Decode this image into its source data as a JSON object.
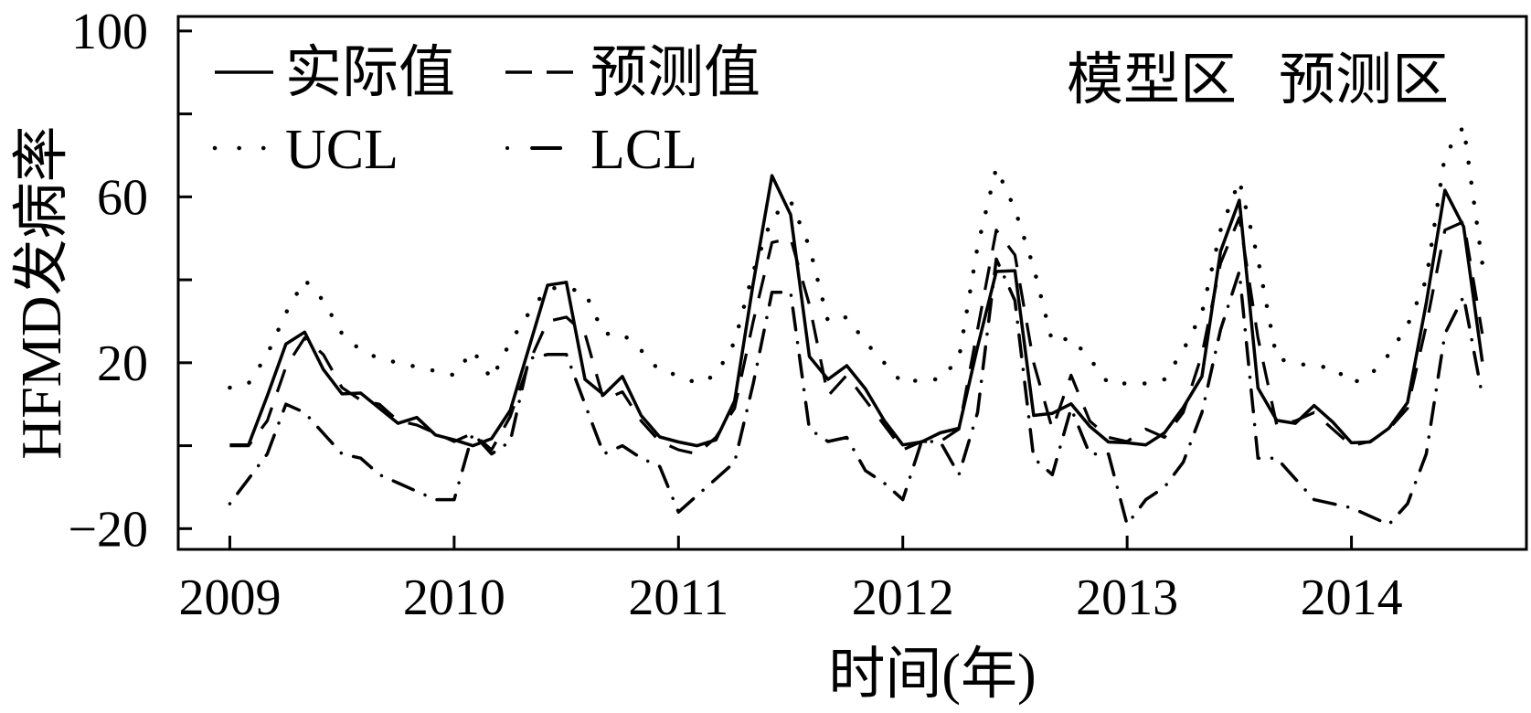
{
  "colors": {
    "line": "#000000",
    "background": "#ffffff"
  },
  "chart_data": {
    "type": "line",
    "xlabel": "时间(年)",
    "ylabel": "HFMD发病率",
    "xlim": [
      2008.77,
      2014.78
    ],
    "ylim": [
      -25,
      103.5
    ],
    "grid": false,
    "legend_placement": "top-left",
    "x_ticks": [
      {
        "value": 2009,
        "label": "2009"
      },
      {
        "value": 2010,
        "label": "2010"
      },
      {
        "value": 2011,
        "label": "2011"
      },
      {
        "value": 2012,
        "label": "2012"
      },
      {
        "value": 2013,
        "label": "2013"
      },
      {
        "value": 2014,
        "label": "2014"
      }
    ],
    "y_ticks": [
      {
        "value": -20,
        "label": "−20"
      },
      {
        "value": 0,
        "label": ""
      },
      {
        "value": 20,
        "label": "20"
      },
      {
        "value": 40,
        "label": ""
      },
      {
        "value": 60,
        "label": "60"
      },
      {
        "value": 80,
        "label": ""
      },
      {
        "value": 100,
        "label": "100"
      }
    ],
    "region_labels": [
      "模型区",
      "预测区"
    ],
    "x": [
      "2009-01",
      "2009-02",
      "2009-03",
      "2009-04",
      "2009-05",
      "2009-06",
      "2009-07",
      "2009-08",
      "2009-09",
      "2009-10",
      "2009-11",
      "2009-12",
      "2010-01",
      "2010-02",
      "2010-03",
      "2010-04",
      "2010-05",
      "2010-06",
      "2010-07",
      "2010-08",
      "2010-09",
      "2010-10",
      "2010-11",
      "2010-12",
      "2011-01",
      "2011-02",
      "2011-03",
      "2011-04",
      "2011-05",
      "2011-06",
      "2011-07",
      "2011-08",
      "2011-09",
      "2011-10",
      "2011-11",
      "2011-12",
      "2012-01",
      "2012-02",
      "2012-03",
      "2012-04",
      "2012-05",
      "2012-06",
      "2012-07",
      "2012-08",
      "2012-09",
      "2012-10",
      "2012-11",
      "2012-12",
      "2013-01",
      "2013-02",
      "2013-03",
      "2013-04",
      "2013-05",
      "2013-06",
      "2013-07",
      "2013-08",
      "2013-09",
      "2013-10",
      "2013-11",
      "2013-12",
      "2014-01",
      "2014-02",
      "2014-03",
      "2014-04",
      "2014-05",
      "2014-06",
      "2014-07",
      "2014-08"
    ],
    "series": [
      {
        "name": "实际值",
        "line_style": "solid",
        "values": [
          0.2,
          0.2,
          12.0,
          24.5,
          27.4,
          18.4,
          12.5,
          12.7,
          9.0,
          5.4,
          6.8,
          2.6,
          1.4,
          0.0,
          1.7,
          8.5,
          23.6,
          38.7,
          39.4,
          16.0,
          12.3,
          16.7,
          7.3,
          2.1,
          0.9,
          0.0,
          1.4,
          10.8,
          39.2,
          65.1,
          55.7,
          21.5,
          16.0,
          19.3,
          13.7,
          6.1,
          0.2,
          0.9,
          3.1,
          4.2,
          23.8,
          42.0,
          42.2,
          7.3,
          7.8,
          10.1,
          4.7,
          0.9,
          0.7,
          0.2,
          3.1,
          9.2,
          16.7,
          46.9,
          59.2,
          13.9,
          6.1,
          5.4,
          9.7,
          5.7,
          0.7,
          0.9,
          4.2,
          10.4,
          34.4,
          61.6,
          52.8,
          20.3
        ]
      },
      {
        "name": "预测值",
        "line_style": "dashed",
        "values": [
          0,
          0,
          6,
          19,
          26,
          22,
          14,
          11,
          10,
          6,
          5,
          3,
          1,
          3,
          -1,
          7,
          20,
          30,
          31,
          27,
          11,
          13,
          6,
          1,
          -1,
          -2,
          2,
          9,
          30,
          49,
          50,
          34,
          12,
          17,
          11,
          5,
          -1,
          1,
          1,
          4,
          28,
          52,
          46,
          20,
          4,
          17,
          6,
          2,
          1,
          4,
          2,
          8,
          22,
          44,
          55,
          26,
          5,
          6,
          8,
          4,
          0,
          1,
          4,
          9,
          29,
          52,
          54,
          27
        ]
      },
      {
        "name": "UCL",
        "line_style": "dotted",
        "values": [
          14,
          15,
          22,
          32,
          40,
          35,
          27,
          23,
          21,
          20,
          19,
          18,
          17,
          23,
          16,
          25,
          32,
          38,
          38,
          37,
          27,
          27,
          23,
          18,
          17,
          15,
          17,
          25,
          42,
          55,
          59,
          48,
          30,
          31,
          25,
          20,
          15,
          16,
          16,
          21,
          48,
          67,
          57,
          43,
          25,
          26,
          21,
          15,
          15,
          15,
          16,
          23,
          32,
          52,
          64,
          45,
          21,
          20,
          19,
          19,
          15,
          17,
          22,
          29,
          40,
          70,
          77,
          44
        ]
      },
      {
        "name": "LCL",
        "line_style": "dash-dot",
        "values": [
          -14,
          -8,
          -2,
          10,
          8,
          3,
          -2,
          -3,
          -7,
          -9,
          -11,
          -13,
          -13,
          3,
          -2,
          1,
          21,
          22,
          22,
          10,
          -2,
          0,
          -3,
          -5,
          -16,
          -12,
          -8,
          -4,
          15,
          37,
          37,
          4,
          1,
          2,
          -6,
          -9,
          -13,
          1,
          1,
          -7,
          8,
          45,
          35,
          -3,
          -7,
          9,
          -2,
          -2,
          -19,
          -13,
          -10,
          -4,
          8,
          28,
          42,
          -3,
          -3,
          -8,
          -13,
          -14,
          -15,
          -17,
          -19,
          -14,
          -2,
          27,
          36,
          12
        ]
      }
    ]
  }
}
